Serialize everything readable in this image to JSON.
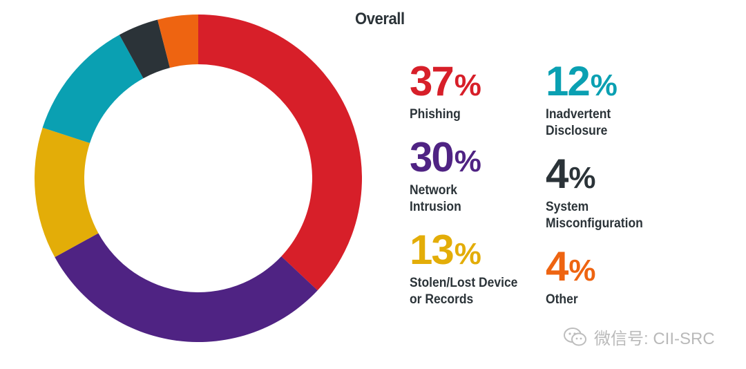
{
  "chart_data": {
    "type": "pie",
    "title": "Overall",
    "categories": [
      "Phishing",
      "Network\nIntrusion",
      "Stolen/Lost Device\nor Records",
      "Inadvertent\nDisclosure",
      "System\nMisconfiguration",
      "Other"
    ],
    "values": [
      37,
      30,
      13,
      12,
      4,
      4
    ],
    "display": [
      "37",
      "30",
      "13",
      "12",
      "4",
      "4"
    ],
    "percent_symbol": "%",
    "colors": [
      "#d71f29",
      "#4f2383",
      "#e3ad08",
      "#0aa0b2",
      "#2b3338",
      "#ee6411"
    ],
    "legend_placement": "right"
  },
  "watermark": {
    "text": "微信号: CII-SRC",
    "icon": "wechat-icon"
  }
}
